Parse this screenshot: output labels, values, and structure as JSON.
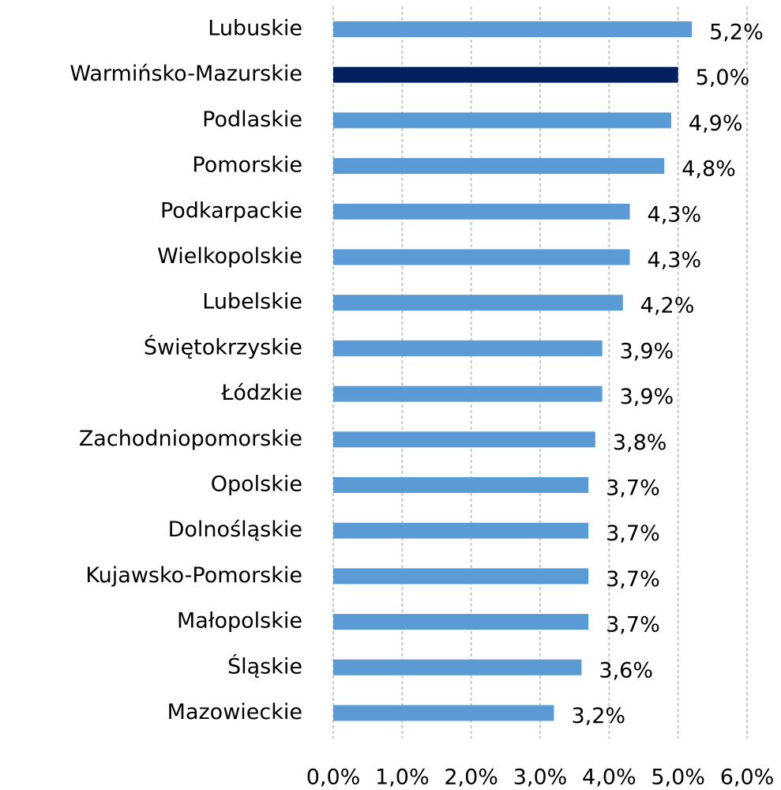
{
  "chart_data": {
    "type": "bar",
    "orientation": "horizontal",
    "categories": [
      "Lubuskie",
      "Warmińsko-Mazurskie",
      "Podlaskie",
      "Pomorskie",
      "Podkarpackie",
      "Wielkopolskie",
      "Lubelskie",
      "Świętokrzyskie",
      "Łódzkie",
      "Zachodniopomorskie",
      "Opolskie",
      "Dolnośląskie",
      "Kujawsko-Pomorskie",
      "Małopolskie",
      "Śląskie",
      "Mazowieckie"
    ],
    "values": [
      5.2,
      5.0,
      4.9,
      4.8,
      4.3,
      4.3,
      4.2,
      3.9,
      3.9,
      3.8,
      3.7,
      3.7,
      3.7,
      3.7,
      3.6,
      3.2
    ],
    "value_labels": [
      "5,2%",
      "5,0%",
      "4,9%",
      "4,8%",
      "4,3%",
      "4,3%",
      "4,2%",
      "3,9%",
      "3,9%",
      "3,8%",
      "3,7%",
      "3,7%",
      "3,7%",
      "3,7%",
      "3,6%",
      "3,2%"
    ],
    "colors": [
      "#5b9bd5",
      "#002060",
      "#5b9bd5",
      "#5b9bd5",
      "#5b9bd5",
      "#5b9bd5",
      "#5b9bd5",
      "#5b9bd5",
      "#5b9bd5",
      "#5b9bd5",
      "#5b9bd5",
      "#5b9bd5",
      "#5b9bd5",
      "#5b9bd5",
      "#5b9bd5",
      "#5b9bd5"
    ],
    "xlim": [
      0,
      6
    ],
    "xticks": [
      {
        "value": 0,
        "label": "0,0%"
      },
      {
        "value": 1,
        "label": "1,0%"
      },
      {
        "value": 2,
        "label": "2,0%"
      },
      {
        "value": 3,
        "label": "3,0%"
      },
      {
        "value": 4,
        "label": "4,0%"
      },
      {
        "value": 5,
        "label": "5,0%"
      },
      {
        "value": 6,
        "label": "6,0%"
      }
    ],
    "grid": true
  }
}
